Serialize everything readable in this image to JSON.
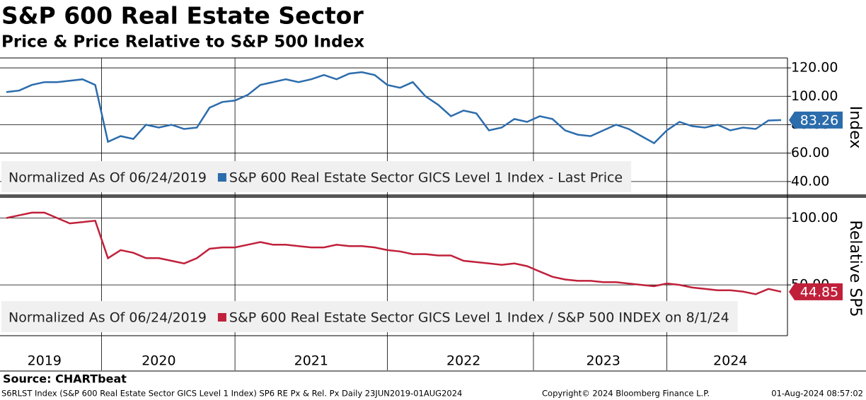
{
  "header": {
    "title": "S&P 600 Real Estate Sector",
    "subtitle": "Price & Price Relative to S&P 500 Index"
  },
  "chart_data": [
    {
      "type": "line",
      "annotation": "Normalized As Of 06/24/2019",
      "y_label": "Index",
      "grid": true,
      "ylim": [
        31,
        127
      ],
      "yticks": [
        {
          "value": 40,
          "label": "40.00"
        },
        {
          "value": 60,
          "label": "60.00"
        },
        {
          "value": 80,
          "label": "80.00"
        },
        {
          "value": 100,
          "label": "100.00"
        },
        {
          "value": 120,
          "label": "120.00"
        }
      ],
      "series": [
        {
          "name": "S&P 600 Real Estate Sector GICS Level 1 Index - Last Price",
          "color": "#2b6cac",
          "values": [
            103,
            104,
            108,
            110,
            110,
            111,
            112,
            108,
            68,
            72,
            70,
            80,
            78,
            80,
            77,
            78,
            92,
            96,
            97,
            101,
            108,
            110,
            112,
            110,
            112,
            115,
            112,
            116,
            117,
            115,
            108,
            106,
            110,
            100,
            94,
            86,
            90,
            88,
            76,
            78,
            84,
            82,
            86,
            84,
            76,
            73,
            72,
            76,
            80,
            77,
            72,
            67,
            76,
            82,
            79,
            78,
            80,
            76,
            78,
            77,
            83,
            83.26
          ]
        }
      ]
    },
    {
      "type": "line",
      "annotation": "Normalized As Of 06/24/2019",
      "y_label": "Relative SP5",
      "grid": true,
      "ylim": [
        12,
        114
      ],
      "yticks": [
        {
          "value": 50,
          "label": "50.00"
        },
        {
          "value": 100,
          "label": "100.00"
        }
      ],
      "categories": [
        null,
        null,
        null,
        "2019",
        null,
        null,
        null,
        null,
        null,
        null,
        null,
        null,
        "2020",
        null,
        null,
        null,
        null,
        null,
        null,
        null,
        null,
        null,
        null,
        null,
        "2021",
        null,
        null,
        null,
        null,
        null,
        null,
        null,
        null,
        null,
        null,
        null,
        "2022",
        null,
        null,
        null,
        null,
        null,
        null,
        null,
        null,
        null,
        null,
        "2023",
        null,
        null,
        null,
        null,
        null,
        null,
        null,
        null,
        null,
        "2024",
        null,
        null,
        null,
        null
      ],
      "series": [
        {
          "name": "S&P 600 Real Estate Sector GICS Level 1 Index / S&P 500 INDEX on 8/1/24",
          "color": "#c0203a",
          "values": [
            100,
            102,
            104,
            104,
            100,
            96,
            97,
            98,
            70,
            76,
            74,
            70,
            70,
            68,
            66,
            70,
            77,
            78,
            78,
            80,
            82,
            80,
            80,
            79,
            78,
            78,
            80,
            79,
            79,
            78,
            76,
            75,
            73,
            73,
            72,
            72,
            68,
            67,
            66,
            65,
            66,
            64,
            60,
            56,
            54,
            53,
            53,
            52,
            52,
            51,
            50,
            49,
            51,
            50,
            48,
            47,
            46,
            46,
            45,
            43,
            47,
            44.85
          ]
        }
      ]
    }
  ],
  "footer": {
    "source": "Source: CHARTbeat",
    "description": "S6RLST Index (S&P 600 Real Estate Sector GICS Level 1 Index) SP6 RE Px & Rel. Px  Daily 23JUN2019-01AUG2024",
    "copyright": "Copyright© 2024 Bloomberg Finance L.P.",
    "timestamp": "01-Aug-2024 08:57:02"
  }
}
